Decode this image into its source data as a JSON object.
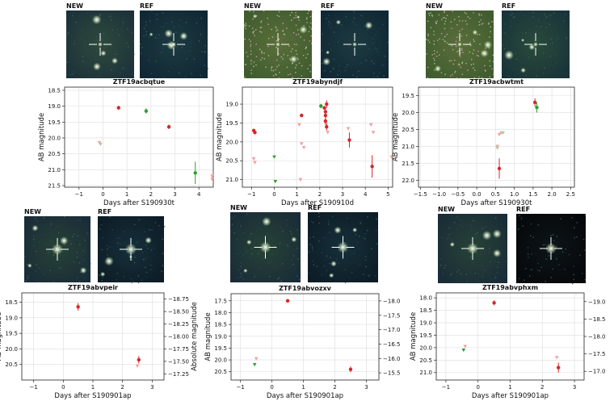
{
  "stamp_labels": {
    "new": "NEW",
    "ref": "REF"
  },
  "colors": {
    "r_band": "#d62728",
    "g_band": "#2ca02c",
    "r_faint": "#f2a0a0",
    "g_faint": "#9fd39f",
    "grid": "#dddddd",
    "cross": "#ffffff"
  },
  "chart_data": [
    {
      "type": "scatter",
      "title": "ZTF19acbqtue",
      "xlabel": "Days after S190930t",
      "ylabel": "AB magnitude",
      "xlim": [
        -1.6,
        4.6
      ],
      "xticks": [
        -1,
        0,
        1,
        2,
        3,
        4
      ],
      "ylim": [
        21.55,
        18.4
      ],
      "yticks": [
        18.5,
        19.0,
        19.5,
        20.0,
        20.5,
        21.0,
        21.5
      ],
      "ytick_labels": [
        "18.5",
        "19.0",
        "19.5",
        "20.0",
        "20.5",
        "21.0",
        "21.5"
      ],
      "series": [
        {
          "name": "r",
          "color": "#d62728",
          "points": [
            [
              0.65,
              19.05,
              0.06
            ],
            [
              2.75,
              19.65,
              0.07
            ]
          ]
        },
        {
          "name": "g",
          "color": "#2ca02c",
          "points": [
            [
              1.8,
              19.15,
              0.08
            ],
            [
              3.85,
              21.1,
              0.35
            ]
          ]
        },
        {
          "name": "r upper limit",
          "color": "#f2a0a0",
          "marker": "triangle",
          "points": [
            [
              -0.15,
              20.15
            ],
            [
              4.55,
              21.2
            ],
            [
              4.55,
              21.3
            ]
          ]
        },
        {
          "name": "g upper limit",
          "color": "#9fd39f",
          "marker": "triangle",
          "points": [
            [
              -0.1,
              20.2
            ]
          ]
        }
      ]
    },
    {
      "type": "scatter",
      "title": "ZTF19abyndjf",
      "xlabel": "Days after S190910d",
      "ylabel": "AB magnitude",
      "xlim": [
        -1.4,
        5.2
      ],
      "xticks": [
        -1,
        0,
        1,
        2,
        3,
        4,
        5
      ],
      "ylim": [
        21.2,
        18.55
      ],
      "yticks": [
        19.0,
        19.5,
        20.0,
        20.5,
        21.0
      ],
      "ytick_labels": [
        "19.0",
        "19.5",
        "20.0",
        "20.5",
        "21.0"
      ],
      "series": [
        {
          "name": "r",
          "color": "#d62728",
          "points": [
            [
              -0.9,
              19.7,
              0.05
            ],
            [
              -0.85,
              19.75,
              0.05
            ],
            [
              1.2,
              19.3,
              0.05
            ],
            [
              2.2,
              19.1,
              0.05
            ],
            [
              2.25,
              19.2,
              0.1
            ],
            [
              2.25,
              19.3,
              0.1
            ],
            [
              2.25,
              19.45,
              0.1
            ],
            [
              2.3,
              19.0,
              0.1
            ],
            [
              2.3,
              19.6,
              0.1
            ],
            [
              3.3,
              19.95,
              0.2
            ],
            [
              4.3,
              20.65,
              0.3
            ]
          ]
        },
        {
          "name": "g",
          "color": "#2ca02c",
          "points": [
            [
              2.05,
              19.05,
              0.06
            ]
          ]
        },
        {
          "name": "r upper limit",
          "color": "#f2a0a0",
          "marker": "triangle",
          "points": [
            [
              -0.9,
              20.45
            ],
            [
              -0.85,
              20.55
            ],
            [
              1.1,
              19.55
            ],
            [
              1.2,
              20.05
            ],
            [
              1.3,
              20.15
            ],
            [
              1.15,
              21.0
            ],
            [
              2.35,
              19.75
            ],
            [
              3.25,
              19.65
            ],
            [
              4.25,
              19.55
            ],
            [
              4.35,
              19.75
            ],
            [
              5.15,
              20.4
            ]
          ]
        },
        {
          "name": "g upper limit",
          "color": "#2ca02c",
          "marker": "triangle",
          "points": [
            [
              0.0,
              20.4
            ],
            [
              0.05,
              21.05
            ]
          ]
        }
      ]
    },
    {
      "type": "scatter",
      "title": "ZTF19acbwtmt",
      "xlabel": "Days after S190930t",
      "ylabel": "AB magnitude",
      "xlim": [
        -1.55,
        2.6
      ],
      "xticks": [
        -1.5,
        -1.0,
        -0.5,
        0.0,
        0.5,
        1.0,
        1.5,
        2.0,
        2.5
      ],
      "ytick_labels": [
        "19.5",
        "20.0",
        "20.5",
        "21.0",
        "21.5",
        "22.0"
      ],
      "ylim": [
        22.2,
        19.25
      ],
      "yticks": [
        19.5,
        20.0,
        20.5,
        21.0,
        21.5,
        22.0
      ],
      "series": [
        {
          "name": "r",
          "color": "#d62728",
          "points": [
            [
              0.6,
              21.65,
              0.3
            ],
            [
              1.55,
              19.7,
              0.12
            ]
          ]
        },
        {
          "name": "g",
          "color": "#2ca02c",
          "points": [
            [
              1.6,
              19.85,
              0.15
            ]
          ]
        },
        {
          "name": "r upper limit",
          "color": "#f2a0a0",
          "marker": "triangle",
          "points": [
            [
              0.55,
              21.0
            ],
            [
              0.6,
              20.65
            ],
            [
              0.65,
              20.6
            ]
          ]
        },
        {
          "name": "g upper limit",
          "color": "#9fd39f",
          "marker": "triangle",
          "points": [
            [
              0.7,
              20.6
            ],
            [
              0.55,
              21.05
            ]
          ]
        }
      ]
    },
    {
      "type": "scatter",
      "title": "ZTF19abvpeir",
      "xlabel": "Days after S190901ap",
      "ylabel": "AB magnitude",
      "y2label": "Absolute magnitude",
      "xlim": [
        -1.4,
        3.4
      ],
      "xticks": [
        -1,
        0,
        1,
        2,
        3
      ],
      "ylim": [
        21.0,
        18.2
      ],
      "yticks": [
        18.5,
        19.0,
        19.5,
        20.0,
        20.5
      ],
      "ytick_labels": [
        "18.5",
        "19.0",
        "19.5",
        "20.0",
        "20.5"
      ],
      "y2ticks": [
        -18.75,
        -18.5,
        -18.25,
        -18.0,
        -17.75,
        -17.5,
        -17.25
      ],
      "y2tick_labels": [
        "−18.75",
        "−18.50",
        "−18.25",
        "−18.00",
        "−17.75",
        "−17.50",
        "−17.25"
      ],
      "series": [
        {
          "name": "r",
          "color": "#d62728",
          "points": [
            [
              0.5,
              18.65,
              0.12
            ],
            [
              2.55,
              20.35,
              0.12
            ]
          ]
        },
        {
          "name": "r upper limit",
          "color": "#f2a0a0",
          "marker": "triangle",
          "points": [
            [
              2.5,
              20.55
            ]
          ]
        }
      ]
    },
    {
      "type": "scatter",
      "title": "ZTF19abvozxv",
      "xlabel": "Days after S190901ap",
      "ylabel": "AB magnitude",
      "xlim": [
        -1.3,
        3.4
      ],
      "xticks": [
        -1,
        0,
        1,
        2,
        3
      ],
      "ylim": [
        20.85,
        17.2
      ],
      "yticks": [
        17.5,
        18.0,
        18.5,
        19.0,
        19.5,
        20.0,
        20.5
      ],
      "ytick_labels": [
        "17.5",
        "18.0",
        "18.5",
        "19.0",
        "19.5",
        "20.0",
        "20.5"
      ],
      "y2ticks": [
        -18.0,
        -17.5,
        -17.0,
        -16.5,
        -16.0,
        -15.5
      ],
      "y2tick_labels": [
        "−18.0",
        "−17.5",
        "−17.0",
        "−16.5",
        "−16.0",
        "−15.5"
      ],
      "series": [
        {
          "name": "r",
          "color": "#d62728",
          "points": [
            [
              0.5,
              17.5,
              0.06
            ],
            [
              2.5,
              20.4,
              0.12
            ]
          ]
        },
        {
          "name": "r upper limit",
          "color": "#f2a0a0",
          "marker": "triangle",
          "points": [
            [
              -0.5,
              19.95
            ]
          ]
        },
        {
          "name": "g upper limit",
          "color": "#2ca02c",
          "marker": "triangle",
          "points": [
            [
              -0.55,
              20.2
            ]
          ]
        }
      ]
    },
    {
      "type": "scatter",
      "title": "ZTF19abvphxm",
      "xlabel": "Days after S190901ap",
      "ylabel": "AB magnitude",
      "xlim": [
        -1.3,
        3.3
      ],
      "xticks": [
        -1,
        0,
        1,
        2,
        3
      ],
      "ylim": [
        21.3,
        17.8
      ],
      "yticks": [
        18.0,
        18.5,
        19.0,
        19.5,
        20.0,
        20.5,
        21.0
      ],
      "ytick_labels": [
        "18.0",
        "18.5",
        "19.0",
        "19.5",
        "20.0",
        "20.5",
        "21.0"
      ],
      "y2ticks": [
        -19.0,
        -18.5,
        -18.0,
        -17.5,
        -17.0
      ],
      "y2tick_labels": [
        "−19.0",
        "−18.5",
        "−18.0",
        "−17.5",
        "−17.0"
      ],
      "series": [
        {
          "name": "r",
          "color": "#d62728",
          "points": [
            [
              0.5,
              18.2,
              0.1
            ],
            [
              2.5,
              20.8,
              0.2
            ]
          ]
        },
        {
          "name": "r upper limit",
          "color": "#f2a0a0",
          "marker": "triangle",
          "points": [
            [
              -0.4,
              19.95
            ],
            [
              2.45,
              20.4
            ]
          ]
        },
        {
          "name": "g upper limit",
          "color": "#2ca02c",
          "marker": "triangle",
          "points": [
            [
              -0.45,
              20.1
            ]
          ]
        }
      ]
    }
  ]
}
